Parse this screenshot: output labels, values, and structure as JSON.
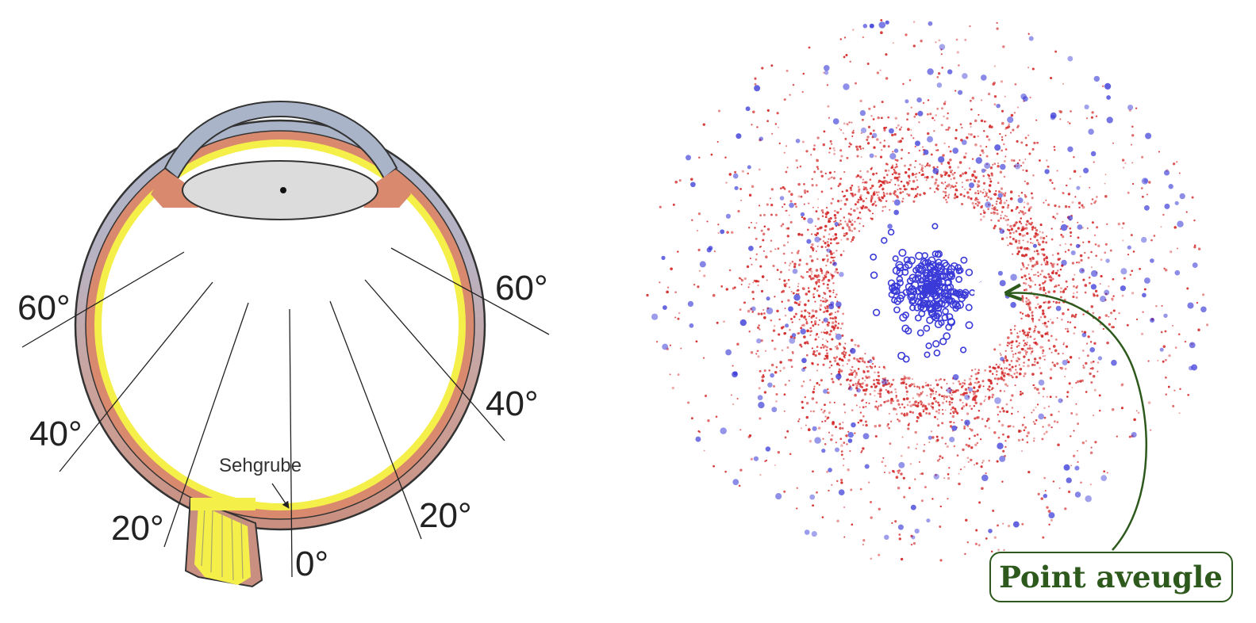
{
  "eye_diagram": {
    "angle_labels": {
      "left_60": "60°",
      "right_60": "60°",
      "left_40": "40°",
      "right_40": "40°",
      "left_20": "20°",
      "right_20": "20°",
      "center_0": "0°"
    },
    "fovea_label": "Sehgrube"
  },
  "retina_map": {
    "callout_label": "Point aveugle",
    "colors": {
      "rods": "#d42a2a",
      "cones": "#3a3ad8",
      "callout": "#2d5a1c"
    }
  }
}
